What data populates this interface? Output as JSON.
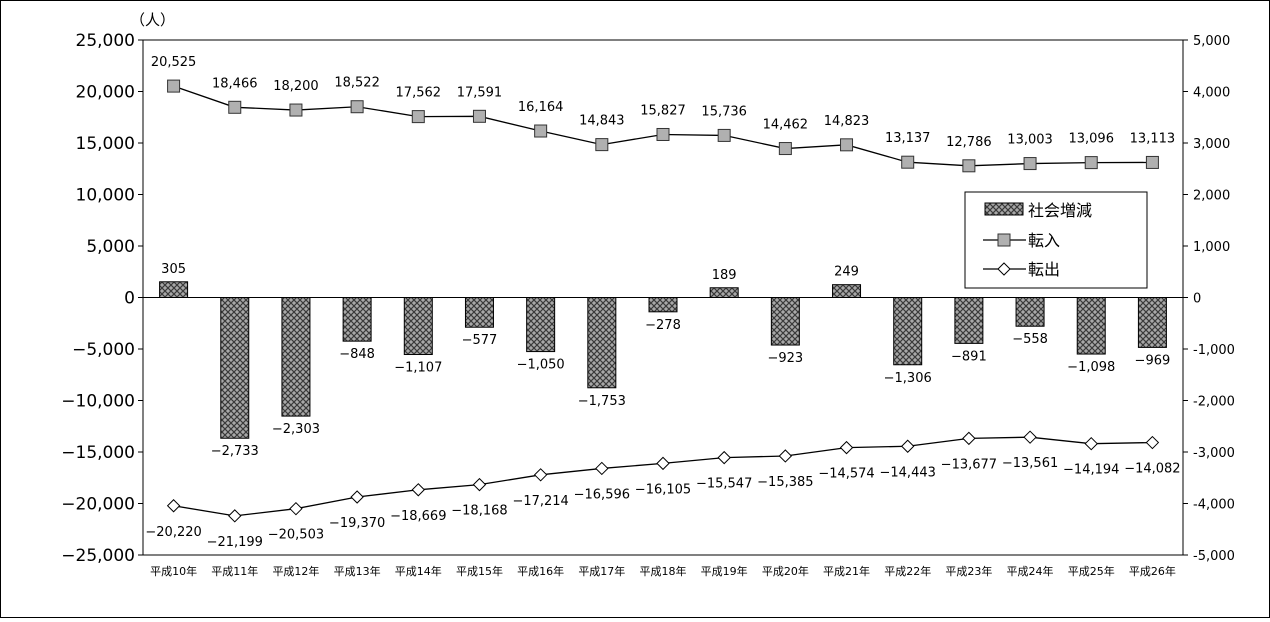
{
  "chart_data": {
    "type": "bar+line",
    "unit_label": "（人）",
    "categories": [
      "平成10年",
      "平成11年",
      "平成12年",
      "平成13年",
      "平成14年",
      "平成15年",
      "平成16年",
      "平成17年",
      "平成18年",
      "平成19年",
      "平成20年",
      "平成21年",
      "平成22年",
      "平成23年",
      "平成24年",
      "平成25年",
      "平成26年"
    ],
    "left_axis": {
      "ylim": [
        -25000,
        25000
      ],
      "ticks": [
        25000,
        20000,
        15000,
        10000,
        5000,
        0,
        -5000,
        -10000,
        -15000,
        -20000,
        -25000
      ],
      "tick_labels": [
        "25,000",
        "20,000",
        "15,000",
        "10,000",
        "5,000",
        "0",
        "−5,000",
        "−10,000",
        "−15,000",
        "−20,000",
        "−25,000"
      ]
    },
    "right_axis": {
      "ylim": [
        -5000,
        5000
      ],
      "ticks": [
        5000,
        4000,
        3000,
        2000,
        1000,
        0,
        -1000,
        -2000,
        -3000,
        -4000,
        -5000
      ],
      "tick_labels": [
        "5,000",
        "4,000",
        "3,000",
        "2,000",
        "1,000",
        "0",
        "-1,000",
        "-2,000",
        "-3,000",
        "-4,000",
        "-5,000"
      ]
    },
    "series": [
      {
        "name": "社会増減",
        "type": "bar",
        "axis": "right",
        "values": [
          305,
          -2733,
          -2303,
          -848,
          -1107,
          -577,
          -1050,
          -1753,
          -278,
          189,
          -923,
          249,
          -1306,
          -891,
          -558,
          -1098,
          -969
        ],
        "labels": [
          "305",
          "−2,733",
          "−2,303",
          "−848",
          "−1,107",
          "−577",
          "−1,050",
          "−1,753",
          "−278",
          "189",
          "−923",
          "249",
          "−1,306",
          "−891",
          "−558",
          "−1,098",
          "−969"
        ]
      },
      {
        "name": "転入",
        "type": "line",
        "axis": "left",
        "marker": "square",
        "values": [
          20525,
          18466,
          18200,
          18522,
          17562,
          17591,
          16164,
          14843,
          15827,
          15736,
          14462,
          14823,
          13137,
          12786,
          13003,
          13096,
          13113
        ],
        "labels": [
          "20,525",
          "18,466",
          "18,200",
          "18,522",
          "17,562",
          "17,591",
          "16,164",
          "14,843",
          "15,827",
          "15,736",
          "14,462",
          "14,823",
          "13,137",
          "12,786",
          "13,003",
          "13,096",
          "13,113"
        ]
      },
      {
        "name": "転出",
        "type": "line",
        "axis": "left",
        "marker": "diamond",
        "values": [
          -20220,
          -21199,
          -20503,
          -19370,
          -18669,
          -18168,
          -17214,
          -16596,
          -16105,
          -15547,
          -15385,
          -14574,
          -14443,
          -13677,
          -13561,
          -14194,
          -14082
        ],
        "labels": [
          "−20,220",
          "−21,199",
          "−20,503",
          "−19,370",
          "−18,669",
          "−18,168",
          "−17,214",
          "−16,596",
          "−16,105",
          "−15,547",
          "−15,385",
          "−14,574",
          "−14,443",
          "−13,677",
          "−13,561",
          "−14,194",
          "−14,082"
        ]
      }
    ],
    "legend": {
      "placement": "right",
      "entries": [
        "社会増減",
        "転入",
        "転出"
      ]
    },
    "colors": {
      "bar_fill": "#9a9a9a",
      "bar_hatch": "#3c3c3c",
      "line": "#000000",
      "marker_square": "#b0b0b0",
      "marker_diamond": "#ffffff"
    }
  }
}
